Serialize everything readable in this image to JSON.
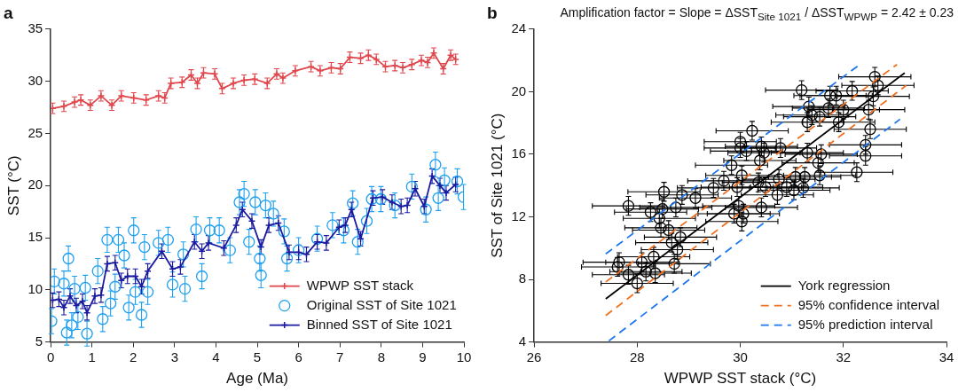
{
  "chart_data": [
    {
      "type": "line",
      "title": "a",
      "xlabel": "Age (Ma)",
      "ylabel": "SST (°C)",
      "xlim": [
        0,
        10
      ],
      "ylim": [
        5,
        35
      ],
      "xticks": [
        0,
        1,
        2,
        3,
        4,
        5,
        6,
        7,
        8,
        9,
        10
      ],
      "yticks": [
        5,
        10,
        15,
        20,
        25,
        30,
        35
      ],
      "legend": "bottom right",
      "series": [
        {
          "name": "WPWP SST stack",
          "color": "#e0474c",
          "marker": "cross",
          "x": [
            0.05,
            0.32,
            0.58,
            0.73,
            0.96,
            1.22,
            1.48,
            1.71,
            2.01,
            2.31,
            2.61,
            2.76,
            2.91,
            3.18,
            3.4,
            3.55,
            3.7,
            3.97,
            4.15,
            4.42,
            4.68,
            4.94,
            5.24,
            5.47,
            5.62,
            5.92,
            6.3,
            6.52,
            6.79,
            7.01,
            7.24,
            7.5,
            7.69,
            7.88,
            8.1,
            8.33,
            8.52,
            8.74,
            8.97,
            9.12,
            9.27,
            9.5,
            9.68,
            9.8
          ],
          "values": [
            27.4,
            27.6,
            28.0,
            28.2,
            27.7,
            28.6,
            27.7,
            28.6,
            28.4,
            28.2,
            28.6,
            28.4,
            29.8,
            29.9,
            30.6,
            29.8,
            30.8,
            30.7,
            29.3,
            29.8,
            30.1,
            30.2,
            29.8,
            30.7,
            30.3,
            31.0,
            31.4,
            31.0,
            31.3,
            31.2,
            32.3,
            32.2,
            32.5,
            32.1,
            31.4,
            31.5,
            31.3,
            31.6,
            32.0,
            31.8,
            32.7,
            31.2,
            32.5,
            32.1
          ],
          "errors": [
            0.5,
            0.5,
            0.5,
            0.5,
            0.5,
            0.5,
            0.5,
            0.5,
            0.5,
            0.5,
            0.5,
            0.5,
            0.5,
            0.5,
            0.5,
            0.5,
            0.5,
            0.5,
            0.5,
            0.5,
            0.5,
            0.5,
            0.5,
            0.5,
            0.5,
            0.5,
            0.5,
            0.5,
            0.5,
            0.5,
            0.5,
            0.5,
            0.5,
            0.5,
            0.5,
            0.5,
            0.5,
            0.5,
            0.5,
            0.5,
            0.5,
            0.5,
            0.5,
            0.5
          ]
        },
        {
          "name": "Original SST of Site 1021",
          "type": "scatter",
          "color": "#1ea0f0",
          "marker": "circle",
          "x": [
            0.02,
            0.09,
            0.32,
            0.39,
            0.43,
            0.51,
            0.58,
            0.66,
            0.88,
            0.84,
            1.14,
            1.26,
            1.37,
            1.45,
            1.64,
            1.56,
            1.78,
            1.89,
            2.01,
            2.05,
            2.2,
            2.27,
            2.35,
            2.61,
            2.84,
            2.95,
            3.25,
            3.21,
            3.52,
            3.66,
            3.85,
            4.08,
            4.34,
            4.57,
            4.68,
            4.8,
            4.95,
            5.06,
            5.09,
            5.2,
            5.39,
            5.65,
            5.72,
            6.0,
            6.45,
            6.82,
            7.09,
            7.31,
            7.43,
            7.65,
            7.77,
            7.99,
            8.33,
            8.74,
            9.08,
            9.31,
            9.38,
            9.53,
            9.84,
            9.99
          ],
          "values": [
            7.0,
            10.8,
            10.6,
            5.9,
            13.0,
            6.6,
            10.1,
            7.4,
            5.8,
            10.2,
            11.8,
            7.2,
            14.8,
            8.7,
            14.8,
            10.3,
            13.3,
            8.3,
            15.7,
            9.8,
            7.6,
            14.1,
            9.8,
            14.5,
            14.8,
            10.5,
            10.1,
            13.4,
            15.8,
            11.3,
            15.7,
            15.7,
            13.8,
            18.4,
            19.2,
            14.6,
            18.4,
            13.0,
            11.4,
            18.1,
            17.3,
            15.6,
            13.0,
            13.8,
            14.9,
            16.2,
            15.7,
            18.3,
            14.6,
            16.6,
            18.7,
            18.7,
            18.1,
            19.9,
            17.7,
            22.0,
            18.8,
            20.5,
            20.4,
            18.9
          ],
          "errors": [
            1.2,
            1.2,
            1.2,
            1.2,
            1.2,
            1.2,
            1.2,
            1.2,
            1.2,
            1.2,
            1.2,
            1.2,
            1.2,
            1.2,
            1.2,
            1.2,
            1.2,
            1.2,
            1.2,
            1.2,
            1.2,
            1.2,
            1.2,
            1.2,
            1.2,
            1.2,
            1.2,
            1.2,
            1.2,
            1.2,
            1.2,
            1.2,
            1.2,
            1.2,
            1.2,
            1.2,
            1.2,
            1.2,
            1.2,
            1.2,
            1.2,
            1.2,
            1.2,
            1.2,
            1.2,
            1.2,
            1.2,
            1.2,
            1.2,
            1.2,
            1.2,
            1.2,
            1.2,
            1.2,
            1.2,
            1.2,
            1.2,
            1.2,
            1.2,
            1.2
          ]
        },
        {
          "name": "Binned SST of Site 1021",
          "color": "#1a1aa0",
          "marker": "cross",
          "x": [
            0.05,
            0.2,
            0.32,
            0.47,
            0.62,
            0.77,
            0.88,
            1.07,
            1.22,
            1.37,
            1.56,
            1.71,
            1.86,
            2.05,
            2.2,
            2.35,
            2.69,
            2.95,
            3.14,
            3.48,
            3.66,
            3.82,
            4.19,
            4.49,
            4.64,
            4.87,
            5.09,
            5.28,
            5.51,
            5.77,
            6.0,
            6.19,
            6.45,
            6.67,
            6.98,
            7.13,
            7.28,
            7.5,
            7.8,
            8.03,
            8.26,
            8.48,
            8.63,
            8.82,
            9.04,
            9.23,
            9.42,
            9.57,
            9.8
          ],
          "values": [
            9.0,
            9.1,
            8.3,
            9.4,
            8.5,
            8.9,
            7.8,
            9.4,
            9.5,
            12.5,
            12.6,
            10.9,
            11.3,
            11.3,
            10.3,
            11.8,
            13.7,
            12.0,
            12.2,
            14.6,
            13.7,
            14.5,
            14.0,
            16.2,
            17.7,
            16.6,
            14.1,
            16.2,
            16.4,
            13.6,
            13.6,
            13.4,
            14.6,
            14.5,
            16.0,
            16.2,
            17.7,
            14.9,
            18.8,
            18.9,
            18.4,
            18.0,
            18.1,
            19.7,
            18.0,
            20.9,
            20.0,
            19.3,
            20.1
          ],
          "errors": [
            0.7,
            0.7,
            0.7,
            0.7,
            0.7,
            0.7,
            0.7,
            0.7,
            0.7,
            0.7,
            0.7,
            0.7,
            0.7,
            0.7,
            0.7,
            0.7,
            0.7,
            0.7,
            0.7,
            0.7,
            0.7,
            0.7,
            0.7,
            0.7,
            0.7,
            0.7,
            0.7,
            0.7,
            0.7,
            0.7,
            0.7,
            0.7,
            0.7,
            0.7,
            0.7,
            0.7,
            0.7,
            0.7,
            0.7,
            0.7,
            0.7,
            0.7,
            0.7,
            0.7,
            0.7,
            0.7,
            0.7,
            0.7,
            0.7
          ]
        }
      ]
    },
    {
      "type": "scatter",
      "title": "b",
      "xlabel": "WPWP SST stack (°C)",
      "ylabel": "SST of Site 1021 (°C)",
      "xlim": [
        26,
        34
      ],
      "ylim": [
        4,
        24
      ],
      "xticks": [
        26,
        28,
        30,
        32,
        34
      ],
      "yticks": [
        4,
        8,
        12,
        16,
        20,
        24
      ],
      "legend": "bottom right",
      "annotations": [
        "Amplification factor = Slope = ΔSST$_{Site 1021}$ / ΔSST$_{WPWP}$ = 2.42 ± 0.23"
      ],
      "series": [
        {
          "color": "#000000",
          "marker": "circle",
          "x": [
            27.65,
            27.62,
            27.83,
            28.0,
            28.09,
            28.17,
            28.32,
            28.35,
            28.72,
            28.78,
            28.67,
            28.84,
            28.61,
            28.46,
            28.43,
            28.26,
            27.83,
            28.49,
            28.75,
            28.52,
            28.87,
            29.13,
            29.48,
            29.68,
            29.83,
            29.94,
            29.88,
            29.97,
            30.06,
            30.03,
            30.41,
            30.03,
            30.0,
            30.0,
            30.12,
            30.23,
            30.38,
            30.41,
            30.46,
            30.49,
            30.35,
            30.78,
            30.72,
            30.75,
            30.9,
            31.04,
            31.07,
            31.25,
            31.22,
            31.3,
            31.54,
            31.51,
            31.57,
            31.19,
            31.33,
            31.3,
            31.39,
            31.54,
            31.71,
            31.74,
            31.86,
            31.91,
            32.0,
            32.17,
            32.26,
            32.43,
            32.43,
            32.49,
            32.52,
            32.58,
            32.61,
            32.67
          ],
          "values": [
            9.1,
            8.8,
            8.3,
            7.75,
            9.1,
            8.5,
            9.45,
            8.4,
            9.0,
            9.9,
            10.35,
            10.7,
            11.15,
            11.3,
            11.9,
            12.3,
            12.7,
            12.5,
            12.6,
            13.6,
            13.4,
            13.2,
            13.85,
            14.3,
            15.3,
            13.9,
            12.2,
            12.7,
            12.2,
            11.7,
            12.6,
            14.65,
            16.8,
            16.4,
            16.2,
            17.5,
            15.6,
            16.5,
            16.1,
            13.9,
            14.2,
            16.4,
            13.4,
            14.4,
            13.9,
            13.7,
            14.55,
            14.55,
            13.85,
            16.1,
            14.65,
            15.45,
            16.0,
            20.1,
            19.05,
            18.05,
            18.5,
            18.4,
            18.95,
            19.75,
            19.75,
            18.05,
            18.85,
            20.05,
            14.85,
            15.9,
            16.6,
            18.85,
            17.6,
            19.7,
            20.95,
            20.4
          ],
          "errors": [
            0.6,
            0.6,
            0.6,
            0.6,
            0.6,
            0.6,
            0.6,
            0.6,
            0.6,
            0.6,
            0.6,
            0.6,
            0.6,
            0.6,
            0.6,
            0.6,
            0.6,
            0.6,
            0.6,
            0.6,
            0.6,
            0.6,
            0.6,
            0.6,
            0.6,
            0.6,
            0.6,
            0.6,
            0.6,
            0.6,
            0.6,
            0.6,
            0.6,
            0.6,
            0.6,
            0.6,
            0.6,
            0.6,
            0.6,
            0.6,
            0.6,
            0.6,
            0.6,
            0.6,
            0.6,
            0.6,
            0.6,
            0.6,
            0.6,
            0.6,
            0.6,
            0.6,
            0.6,
            0.6,
            0.6,
            0.6,
            0.6,
            0.6,
            0.6,
            0.6,
            0.6,
            0.6,
            0.6,
            0.6,
            0.6,
            0.6,
            0.6,
            0.6,
            0.6,
            0.6,
            0.6,
            0.6
          ],
          "xerrors": [
            0.7,
            0.7,
            0.7,
            0.7,
            0.7,
            0.7,
            0.7,
            0.7,
            0.7,
            0.7,
            0.7,
            0.7,
            0.7,
            0.7,
            0.7,
            0.7,
            0.7,
            0.7,
            0.7,
            0.7,
            0.7,
            0.7,
            0.7,
            0.7,
            0.7,
            0.7,
            0.7,
            0.7,
            0.7,
            0.7,
            0.7,
            0.7,
            0.7,
            0.7,
            0.7,
            0.7,
            0.7,
            0.7,
            0.7,
            0.7,
            0.7,
            0.7,
            0.7,
            0.7,
            0.7,
            0.7,
            0.7,
            0.7,
            0.7,
            0.7,
            0.7,
            0.7,
            0.7,
            0.7,
            0.7,
            0.7,
            0.7,
            0.7,
            0.7,
            0.7,
            0.7,
            0.7,
            0.7,
            0.7,
            0.7,
            0.7,
            0.7,
            0.7,
            0.7,
            0.7,
            0.7,
            0.7
          ]
        },
        {
          "name": "York regression",
          "type": "line",
          "color": "#000000",
          "marker": "none",
          "line_style": "solid",
          "x": [
            27.39,
            33.19
          ],
          "values": [
            6.76,
            21.2
          ]
        },
        {
          "name": "95% confidence interval",
          "type": "line",
          "color": "#f07020",
          "marker": "none",
          "line_style": "dashed",
          "x": [
            27.39,
            33.04
          ],
          "values": [
            7.84,
            21.74
          ]
        },
        {
          "type": "line",
          "color": "#f07020",
          "marker": "none",
          "line_style": "dashed",
          "x": [
            27.39,
            33.22
          ],
          "values": [
            5.69,
            20.4
          ]
        },
        {
          "name": "95% prediction interval",
          "type": "line",
          "color": "#1e78f0",
          "marker": "none",
          "line_style": "dashed",
          "x": [
            27.39,
            32.32
          ],
          "values": [
            9.63,
            21.74
          ]
        },
        {
          "type": "line",
          "color": "#1e78f0",
          "marker": "none",
          "line_style": "dashed",
          "x": [
            27.45,
            33.1
          ],
          "values": [
            4.07,
            18.24
          ]
        }
      ]
    }
  ]
}
